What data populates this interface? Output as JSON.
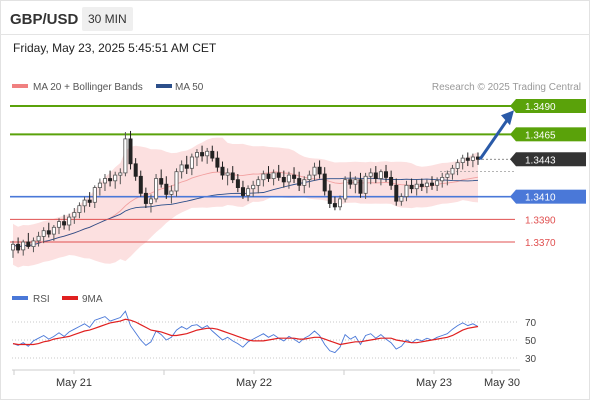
{
  "header": {
    "symbol": "GBP/USD",
    "timeframe": "30 MIN"
  },
  "date_line": "Friday, May 23, 2025 5:45:51 AM CET",
  "legend": {
    "ma20_label": "MA 20 + Bollinger Bands",
    "ma50_label": "MA 50",
    "ma20_color": "#f08080",
    "ma50_color": "#2c4f8a"
  },
  "watermark": "Research © 2025 Trading Central",
  "colors": {
    "up": "#555555",
    "down": "#222222",
    "resistance": "#5aa20a",
    "pivot": "#4a78d8",
    "support": "#e05050",
    "current": "#333333",
    "band": "#fbd6d6",
    "arrow": "#2a5aa8"
  },
  "chart_data": [
    {
      "type": "candlestick",
      "symbol": "GBP/USD",
      "timeframe": "30 MIN",
      "xlabels": [
        "May 21",
        "May 22",
        "May 23",
        "May 30"
      ],
      "ylim": [
        1.334,
        1.3503
      ],
      "price_levels": [
        {
          "label": "1.3490",
          "value": 1.349,
          "kind": "resistance"
        },
        {
          "label": "1.3465",
          "value": 1.3465,
          "kind": "resistance"
        },
        {
          "label": "1.3443",
          "value": 1.3443,
          "kind": "current"
        },
        {
          "label": "1.3410",
          "value": 1.341,
          "kind": "pivot"
        },
        {
          "label": "1.3390",
          "value": 1.339,
          "kind": "support"
        },
        {
          "label": "1.3370",
          "value": 1.337,
          "kind": "support"
        }
      ],
      "forecast": {
        "from": 1.3443,
        "to": 1.3488
      },
      "series": [
        {
          "name": "MA 20 + Bollinger Bands"
        },
        {
          "name": "MA 50"
        }
      ],
      "ohlc": [
        [
          1.3363,
          1.3371,
          1.3356,
          1.3368
        ],
        [
          1.3368,
          1.3374,
          1.336,
          1.3363
        ],
        [
          1.3363,
          1.3372,
          1.3358,
          1.337
        ],
        [
          1.337,
          1.3378,
          1.3364,
          1.3366
        ],
        [
          1.3366,
          1.3374,
          1.3361,
          1.3371
        ],
        [
          1.3371,
          1.3379,
          1.3366,
          1.3375
        ],
        [
          1.3375,
          1.3383,
          1.3369,
          1.338
        ],
        [
          1.338,
          1.3387,
          1.3374,
          1.3377
        ],
        [
          1.3377,
          1.3385,
          1.3371,
          1.3383
        ],
        [
          1.3383,
          1.3391,
          1.3377,
          1.3388
        ],
        [
          1.3388,
          1.3394,
          1.3381,
          1.3385
        ],
        [
          1.3385,
          1.3395,
          1.338,
          1.3392
        ],
        [
          1.3392,
          1.34,
          1.3386,
          1.3396
        ],
        [
          1.3396,
          1.3405,
          1.3391,
          1.3402
        ],
        [
          1.3402,
          1.341,
          1.3396,
          1.3407
        ],
        [
          1.3407,
          1.3414,
          1.3401,
          1.3405
        ],
        [
          1.3405,
          1.342,
          1.34,
          1.3418
        ],
        [
          1.3418,
          1.3426,
          1.3411,
          1.3422
        ],
        [
          1.3422,
          1.343,
          1.3415,
          1.3426
        ],
        [
          1.3426,
          1.3433,
          1.3419,
          1.3424
        ],
        [
          1.3424,
          1.3432,
          1.3417,
          1.3429
        ],
        [
          1.3429,
          1.3435,
          1.3421,
          1.3431
        ],
        [
          1.3431,
          1.3467,
          1.3428,
          1.3461
        ],
        [
          1.3461,
          1.3468,
          1.3434,
          1.3439
        ],
        [
          1.3439,
          1.3444,
          1.3424,
          1.3428
        ],
        [
          1.3428,
          1.3433,
          1.341,
          1.3413
        ],
        [
          1.3413,
          1.3418,
          1.34,
          1.3404
        ],
        [
          1.3404,
          1.3412,
          1.3396,
          1.3408
        ],
        [
          1.3408,
          1.343,
          1.3405,
          1.3426
        ],
        [
          1.3426,
          1.3434,
          1.3418,
          1.3421
        ],
        [
          1.3421,
          1.3428,
          1.3408,
          1.3412
        ],
        [
          1.3412,
          1.342,
          1.3404,
          1.3415
        ],
        [
          1.3415,
          1.3435,
          1.341,
          1.3432
        ],
        [
          1.3432,
          1.3442,
          1.3426,
          1.3438
        ],
        [
          1.3438,
          1.3446,
          1.343,
          1.3435
        ],
        [
          1.3435,
          1.3448,
          1.3429,
          1.3445
        ],
        [
          1.3445,
          1.3452,
          1.3437,
          1.3449
        ],
        [
          1.3449,
          1.3455,
          1.3441,
          1.3446
        ],
        [
          1.3446,
          1.3453,
          1.3439,
          1.345
        ],
        [
          1.345,
          1.3455,
          1.3441,
          1.3444
        ],
        [
          1.3444,
          1.345,
          1.3432,
          1.3436
        ],
        [
          1.3436,
          1.3441,
          1.3425,
          1.3429
        ],
        [
          1.3429,
          1.3435,
          1.342,
          1.3431
        ],
        [
          1.3431,
          1.3437,
          1.3422,
          1.3425
        ],
        [
          1.3425,
          1.343,
          1.3414,
          1.3418
        ],
        [
          1.3418,
          1.3424,
          1.3408,
          1.3411
        ],
        [
          1.3411,
          1.342,
          1.3406,
          1.3417
        ],
        [
          1.3417,
          1.3424,
          1.341,
          1.342
        ],
        [
          1.342,
          1.3428,
          1.3413,
          1.3425
        ],
        [
          1.3425,
          1.3433,
          1.3419,
          1.343
        ],
        [
          1.343,
          1.3437,
          1.3423,
          1.3426
        ],
        [
          1.3426,
          1.3434,
          1.342,
          1.3431
        ],
        [
          1.3431,
          1.3438,
          1.3424,
          1.3427
        ],
        [
          1.3427,
          1.3433,
          1.3418,
          1.3423
        ],
        [
          1.3423,
          1.3432,
          1.3417,
          1.3429
        ],
        [
          1.3429,
          1.3436,
          1.3422,
          1.3426
        ],
        [
          1.3426,
          1.3432,
          1.3415,
          1.342
        ],
        [
          1.342,
          1.3428,
          1.3413,
          1.3425
        ],
        [
          1.3425,
          1.3433,
          1.3418,
          1.3429
        ],
        [
          1.3429,
          1.344,
          1.3424,
          1.3436
        ],
        [
          1.3436,
          1.3442,
          1.3426,
          1.343
        ],
        [
          1.343,
          1.3436,
          1.3411,
          1.3415
        ],
        [
          1.3415,
          1.3421,
          1.34,
          1.3404
        ],
        [
          1.3404,
          1.341,
          1.3398,
          1.3401
        ],
        [
          1.3401,
          1.3411,
          1.3398,
          1.3408
        ],
        [
          1.3408,
          1.3428,
          1.3405,
          1.3425
        ],
        [
          1.3425,
          1.3432,
          1.3417,
          1.3421
        ],
        [
          1.3421,
          1.3428,
          1.3413,
          1.3425
        ],
        [
          1.3425,
          1.3431,
          1.3409,
          1.3413
        ],
        [
          1.3413,
          1.3431,
          1.3408,
          1.3428
        ],
        [
          1.3428,
          1.3435,
          1.3421,
          1.3431
        ],
        [
          1.3431,
          1.3437,
          1.3422,
          1.3426
        ],
        [
          1.3426,
          1.3434,
          1.342,
          1.3432
        ],
        [
          1.3432,
          1.3438,
          1.3423,
          1.3427
        ],
        [
          1.3427,
          1.3433,
          1.3416,
          1.342
        ],
        [
          1.342,
          1.3426,
          1.3402,
          1.3406
        ],
        [
          1.3406,
          1.3413,
          1.3402,
          1.341
        ],
        [
          1.341,
          1.3424,
          1.3406,
          1.342
        ],
        [
          1.342,
          1.3426,
          1.3413,
          1.3417
        ],
        [
          1.3417,
          1.3425,
          1.3411,
          1.3421
        ],
        [
          1.3421,
          1.3426,
          1.3415,
          1.3419
        ],
        [
          1.3419,
          1.3425,
          1.3413,
          1.3422
        ],
        [
          1.3422,
          1.3428,
          1.3416,
          1.342
        ],
        [
          1.342,
          1.3427,
          1.3415,
          1.3424
        ],
        [
          1.3424,
          1.3431,
          1.3418,
          1.3427
        ],
        [
          1.3427,
          1.3433,
          1.342,
          1.343
        ],
        [
          1.343,
          1.3438,
          1.3425,
          1.3435
        ],
        [
          1.3435,
          1.3443,
          1.3429,
          1.344
        ],
        [
          1.344,
          1.3447,
          1.3434,
          1.3444
        ],
        [
          1.3444,
          1.3449,
          1.3437,
          1.3442
        ],
        [
          1.3442,
          1.3448,
          1.3436,
          1.3445
        ],
        [
          1.3445,
          1.3449,
          1.3438,
          1.3443
        ]
      ]
    },
    {
      "type": "line",
      "xlabels": [
        "May 21",
        "May 22",
        "May 23",
        "May 30"
      ],
      "ylim": [
        20,
        85
      ],
      "yticks": [
        70,
        50,
        30
      ],
      "series": [
        {
          "name": "RSI",
          "color": "#4a78d8",
          "values": [
            46,
            44,
            47,
            43,
            49,
            52,
            55,
            51,
            54,
            58,
            54,
            59,
            62,
            65,
            68,
            64,
            72,
            74,
            76,
            71,
            73,
            75,
            82,
            66,
            58,
            50,
            44,
            48,
            60,
            56,
            50,
            53,
            61,
            65,
            62,
            66,
            67,
            63,
            66,
            60,
            55,
            50,
            53,
            49,
            46,
            42,
            48,
            51,
            54,
            57,
            53,
            56,
            52,
            49,
            54,
            51,
            47,
            52,
            55,
            60,
            55,
            45,
            38,
            36,
            42,
            56,
            51,
            54,
            45,
            55,
            57,
            52,
            56,
            51,
            47,
            40,
            43,
            50,
            47,
            51,
            49,
            52,
            50,
            53,
            55,
            57,
            62,
            66,
            69,
            66,
            68,
            65
          ]
        },
        {
          "name": "9MA",
          "color": "#e02020",
          "values": [
            46,
            45,
            45,
            45,
            45,
            46,
            48,
            49,
            51,
            52,
            53,
            54,
            56,
            58,
            60,
            61,
            63,
            65,
            67,
            69,
            70,
            71,
            73,
            72,
            70,
            67,
            64,
            61,
            60,
            59,
            57,
            55,
            55,
            56,
            57,
            59,
            61,
            62,
            63,
            63,
            62,
            60,
            58,
            56,
            54,
            52,
            50,
            49,
            49,
            49,
            50,
            51,
            52,
            52,
            52,
            52,
            51,
            51,
            52,
            53,
            53,
            51,
            49,
            47,
            45,
            46,
            47,
            48,
            48,
            49,
            50,
            51,
            52,
            52,
            52,
            50,
            49,
            48,
            47,
            47,
            48,
            49,
            50,
            51,
            52,
            53,
            55,
            58,
            61,
            63,
            64,
            65
          ]
        }
      ]
    }
  ]
}
